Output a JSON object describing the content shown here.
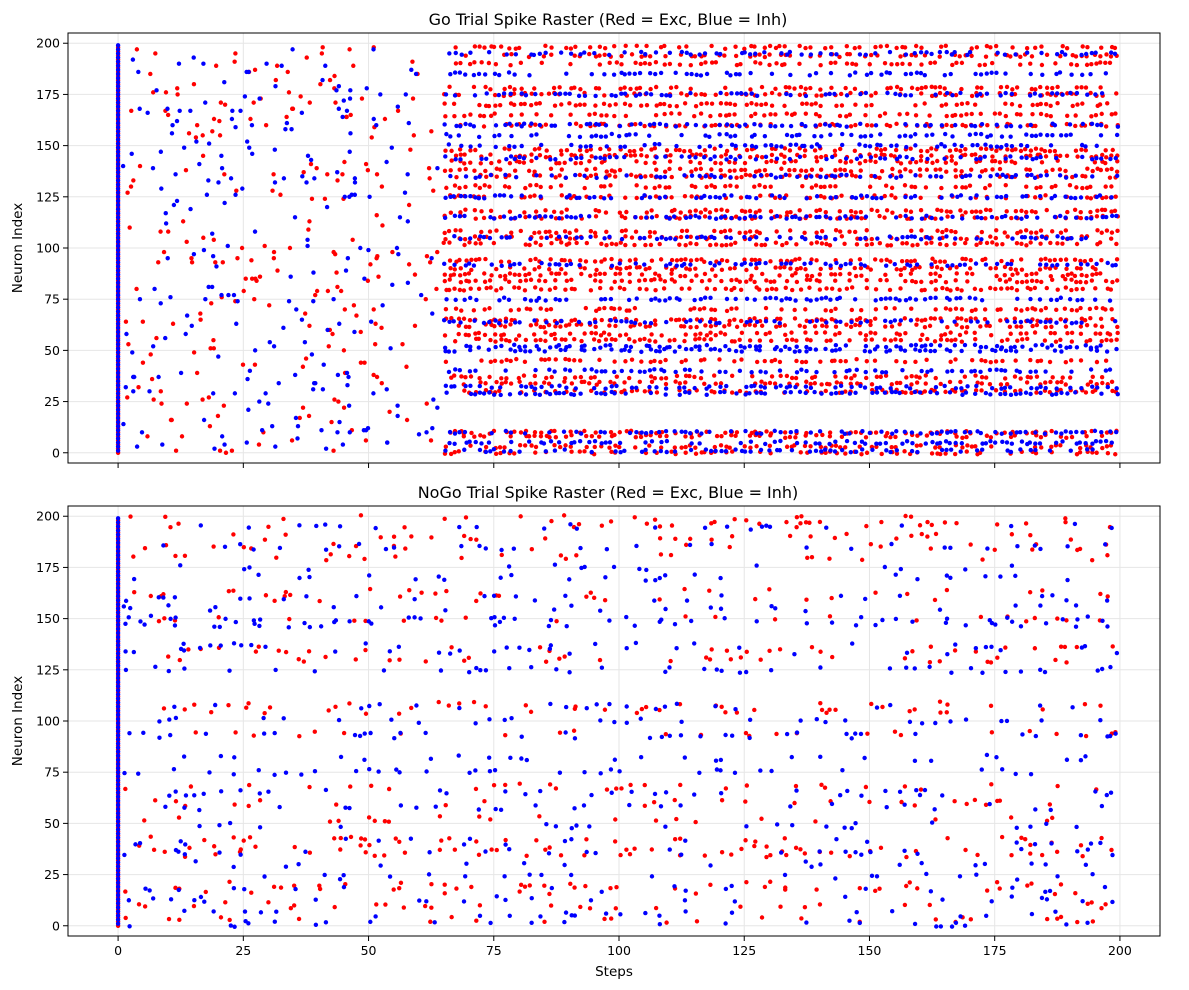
{
  "figure": {
    "shared_xlabel": "Steps"
  },
  "colors": {
    "excitatory": "#ff0000",
    "inhibitory": "#0000ff",
    "grid": "#e6e6e6",
    "axis": "#000000"
  },
  "chart_data": [
    {
      "type": "scatter",
      "title": "Go Trial Spike Raster (Red = Exc, Blue = Inh)",
      "xlabel": "",
      "ylabel": "Neuron Index",
      "xlim": [
        -10,
        208
      ],
      "ylim": [
        -5,
        205
      ],
      "x_ticks": [
        0,
        25,
        50,
        75,
        100,
        125,
        150,
        175,
        200
      ],
      "x_tick_labels_shown": false,
      "y_ticks": [
        0,
        25,
        50,
        75,
        100,
        125,
        150,
        175,
        200
      ],
      "grid": true,
      "legend": "none",
      "series": [
        {
          "color": "excitatory",
          "points_approx": {
            "burst_at_step_0": {
              "x": 0,
              "neuron_index_range": [
                0,
                199
              ]
            },
            "early_irregular_steps": [
              1,
              64
            ],
            "dense_periodic_start_step": 65,
            "active_neuron_bands": [
              0,
              3,
              8,
              10,
              30,
              34,
              37,
              45,
              55,
              58,
              62,
              65,
              70,
              80,
              84,
              87,
              90,
              94,
              102,
              105,
              108,
              115,
              118,
              125,
              130,
              135,
              138,
              142,
              145,
              148,
              160,
              165,
              170,
              175,
              178,
              190,
              194,
              198
            ]
          }
        },
        {
          "color": "inhibitory",
          "points_approx": {
            "burst_at_step_0": {
              "x": 0,
              "neuron_index_range": [
                0,
                199
              ]
            },
            "early_irregular_steps": [
              1,
              64
            ],
            "dense_periodic_start_step": 65,
            "active_neuron_bands": [
              1,
              5,
              10,
              29,
              32,
              40,
              50,
              52,
              64,
              75,
              92,
              105,
              115,
              125,
              135,
              144,
              150,
              155,
              160,
              175,
              185,
              195
            ]
          }
        }
      ]
    },
    {
      "type": "scatter",
      "title": "NoGo Trial Spike Raster (Red = Exc, Blue = Inh)",
      "xlabel": "Steps",
      "ylabel": "Neuron Index",
      "xlim": [
        -10,
        208
      ],
      "ylim": [
        -5,
        205
      ],
      "x_ticks": [
        0,
        25,
        50,
        75,
        100,
        125,
        150,
        175,
        200
      ],
      "y_ticks": [
        0,
        25,
        50,
        75,
        100,
        125,
        150,
        175,
        200
      ],
      "grid": true,
      "legend": "none",
      "series": [
        {
          "color": "excitatory",
          "points_approx": {
            "burst_at_step_0": {
              "x": 0,
              "neuron_index_range": [
                0,
                199
              ]
            },
            "sparse_irregular_steps": [
              1,
              199
            ],
            "active_neuron_bands": [
              3,
              10,
              17,
              20,
              35,
              38,
              42,
              52,
              60,
              68,
              94,
              105,
              108,
              130,
              135,
              150,
              160,
              163,
              180,
              185,
              190,
              196,
              199
            ]
          }
        },
        {
          "color": "inhibitory",
          "points_approx": {
            "burst_at_step_0": {
              "x": 0,
              "neuron_index_range": [
                0,
                199
              ]
            },
            "sparse_irregular_steps": [
              1,
              199
            ],
            "active_neuron_bands": [
              1,
              6,
              13,
              18,
              24,
              30,
              36,
              41,
              49,
              58,
              65,
              75,
              82,
              93,
              100,
              107,
              125,
              134,
              137,
              147,
              150,
              155,
              160,
              170,
              175,
              185,
              195
            ]
          }
        }
      ]
    }
  ]
}
